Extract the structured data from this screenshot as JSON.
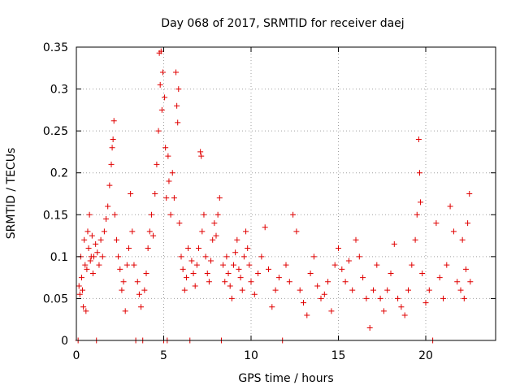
{
  "chart_data": {
    "type": "scatter",
    "title": "Day 068 of 2017, SRMTID for receiver daej",
    "xlabel": "GPS time / hours",
    "ylabel": "SRMTID / TECUs",
    "xlim": [
      0,
      24
    ],
    "ylim": [
      0,
      0.35
    ],
    "xticks": [
      0,
      5,
      10,
      15,
      20
    ],
    "xtick_labels": [
      "0",
      "5",
      "10",
      "15",
      "20"
    ],
    "yticks": [
      0,
      0.05,
      0.1,
      0.15,
      0.2,
      0.25,
      0.3,
      0.35
    ],
    "ytick_labels": [
      "0",
      "0.05",
      "0.1",
      "0.15",
      "0.2",
      "0.25",
      "0.3",
      "0.35"
    ],
    "grid": true,
    "marker": "plus",
    "color": "#e00000",
    "series": [
      {
        "name": "SRMTID",
        "points": [
          [
            0.1,
            0.0
          ],
          [
            0.15,
            0.065
          ],
          [
            0.2,
            0.055
          ],
          [
            0.25,
            0.1
          ],
          [
            0.3,
            0.075
          ],
          [
            0.35,
            0.06
          ],
          [
            0.4,
            0.04
          ],
          [
            0.45,
            0.12
          ],
          [
            0.5,
            0.09
          ],
          [
            0.55,
            0.035
          ],
          [
            0.6,
            0.085
          ],
          [
            0.65,
            0.13
          ],
          [
            0.7,
            0.11
          ],
          [
            0.75,
            0.15
          ],
          [
            0.8,
            0.095
          ],
          [
            0.85,
            0.1
          ],
          [
            0.9,
            0.125
          ],
          [
            0.95,
            0.08
          ],
          [
            1.0,
            0.1
          ],
          [
            1.1,
            0.115
          ],
          [
            1.15,
            0.0
          ],
          [
            1.2,
            0.105
          ],
          [
            1.3,
            0.09
          ],
          [
            1.4,
            0.12
          ],
          [
            1.5,
            0.1
          ],
          [
            1.6,
            0.13
          ],
          [
            1.7,
            0.145
          ],
          [
            1.8,
            0.16
          ],
          [
            1.9,
            0.185
          ],
          [
            2.0,
            0.21
          ],
          [
            2.05,
            0.23
          ],
          [
            2.1,
            0.24
          ],
          [
            2.15,
            0.262
          ],
          [
            2.2,
            0.15
          ],
          [
            2.3,
            0.12
          ],
          [
            2.4,
            0.1
          ],
          [
            2.5,
            0.085
          ],
          [
            2.6,
            0.06
          ],
          [
            2.7,
            0.07
          ],
          [
            2.8,
            0.035
          ],
          [
            2.9,
            0.09
          ],
          [
            3.0,
            0.11
          ],
          [
            3.1,
            0.175
          ],
          [
            3.2,
            0.13
          ],
          [
            3.3,
            0.09
          ],
          [
            3.4,
            0.0
          ],
          [
            3.5,
            0.07
          ],
          [
            3.6,
            0.055
          ],
          [
            3.7,
            0.04
          ],
          [
            3.8,
            0.0
          ],
          [
            3.9,
            0.06
          ],
          [
            4.0,
            0.08
          ],
          [
            4.1,
            0.11
          ],
          [
            4.2,
            0.13
          ],
          [
            4.3,
            0.15
          ],
          [
            4.4,
            0.125
          ],
          [
            4.5,
            0.175
          ],
          [
            4.6,
            0.21
          ],
          [
            4.7,
            0.25
          ],
          [
            4.75,
            0.343
          ],
          [
            4.8,
            0.305
          ],
          [
            4.85,
            0.345
          ],
          [
            4.9,
            0.275
          ],
          [
            4.95,
            0.32
          ],
          [
            5.0,
            0.0
          ],
          [
            5.05,
            0.29
          ],
          [
            5.1,
            0.23
          ],
          [
            5.15,
            0.17
          ],
          [
            5.2,
            0.0
          ],
          [
            5.25,
            0.22
          ],
          [
            5.3,
            0.19
          ],
          [
            5.4,
            0.15
          ],
          [
            5.5,
            0.2
          ],
          [
            5.6,
            0.17
          ],
          [
            5.7,
            0.32
          ],
          [
            5.75,
            0.28
          ],
          [
            5.8,
            0.26
          ],
          [
            5.85,
            0.3
          ],
          [
            5.9,
            0.14
          ],
          [
            6.0,
            0.1
          ],
          [
            6.1,
            0.085
          ],
          [
            6.2,
            0.06
          ],
          [
            6.3,
            0.075
          ],
          [
            6.4,
            0.11
          ],
          [
            6.5,
            0.0
          ],
          [
            6.6,
            0.095
          ],
          [
            6.7,
            0.08
          ],
          [
            6.8,
            0.065
          ],
          [
            6.9,
            0.09
          ],
          [
            7.0,
            0.11
          ],
          [
            7.1,
            0.225
          ],
          [
            7.15,
            0.22
          ],
          [
            7.2,
            0.13
          ],
          [
            7.3,
            0.15
          ],
          [
            7.4,
            0.1
          ],
          [
            7.5,
            0.08
          ],
          [
            7.6,
            0.07
          ],
          [
            7.7,
            0.095
          ],
          [
            7.8,
            0.12
          ],
          [
            7.9,
            0.14
          ],
          [
            8.0,
            0.125
          ],
          [
            8.1,
            0.15
          ],
          [
            8.2,
            0.17
          ],
          [
            8.3,
            0.0
          ],
          [
            8.4,
            0.09
          ],
          [
            8.5,
            0.07
          ],
          [
            8.6,
            0.1
          ],
          [
            8.7,
            0.08
          ],
          [
            8.8,
            0.065
          ],
          [
            8.9,
            0.05
          ],
          [
            9.0,
            0.09
          ],
          [
            9.1,
            0.105
          ],
          [
            9.2,
            0.12
          ],
          [
            9.3,
            0.085
          ],
          [
            9.4,
            0.075
          ],
          [
            9.5,
            0.06
          ],
          [
            9.6,
            0.1
          ],
          [
            9.7,
            0.13
          ],
          [
            9.8,
            0.11
          ],
          [
            9.9,
            0.09
          ],
          [
            10.0,
            0.07
          ],
          [
            10.2,
            0.055
          ],
          [
            10.4,
            0.08
          ],
          [
            10.6,
            0.1
          ],
          [
            10.8,
            0.135
          ],
          [
            11.0,
            0.085
          ],
          [
            11.2,
            0.04
          ],
          [
            11.4,
            0.06
          ],
          [
            11.6,
            0.075
          ],
          [
            11.8,
            0.0
          ],
          [
            12.0,
            0.09
          ],
          [
            12.2,
            0.07
          ],
          [
            12.4,
            0.15
          ],
          [
            12.6,
            0.13
          ],
          [
            12.8,
            0.06
          ],
          [
            13.0,
            0.045
          ],
          [
            13.2,
            0.03
          ],
          [
            13.4,
            0.08
          ],
          [
            13.6,
            0.1
          ],
          [
            13.8,
            0.065
          ],
          [
            14.0,
            0.05
          ],
          [
            14.2,
            0.055
          ],
          [
            14.4,
            0.07
          ],
          [
            14.6,
            0.035
          ],
          [
            14.8,
            0.09
          ],
          [
            15.0,
            0.11
          ],
          [
            15.2,
            0.085
          ],
          [
            15.4,
            0.07
          ],
          [
            15.6,
            0.095
          ],
          [
            15.8,
            0.06
          ],
          [
            16.0,
            0.12
          ],
          [
            16.2,
            0.1
          ],
          [
            16.4,
            0.075
          ],
          [
            16.6,
            0.05
          ],
          [
            16.8,
            0.015
          ],
          [
            17.0,
            0.06
          ],
          [
            17.2,
            0.09
          ],
          [
            17.4,
            0.05
          ],
          [
            17.6,
            0.035
          ],
          [
            17.8,
            0.06
          ],
          [
            18.0,
            0.08
          ],
          [
            18.2,
            0.115
          ],
          [
            18.4,
            0.05
          ],
          [
            18.6,
            0.04
          ],
          [
            18.8,
            0.03
          ],
          [
            19.0,
            0.06
          ],
          [
            19.2,
            0.09
          ],
          [
            19.4,
            0.12
          ],
          [
            19.5,
            0.15
          ],
          [
            19.6,
            0.24
          ],
          [
            19.65,
            0.2
          ],
          [
            19.7,
            0.165
          ],
          [
            19.8,
            0.08
          ],
          [
            20.0,
            0.045
          ],
          [
            20.2,
            0.06
          ],
          [
            20.4,
            0.0
          ],
          [
            20.6,
            0.14
          ],
          [
            20.8,
            0.075
          ],
          [
            21.0,
            0.05
          ],
          [
            21.2,
            0.09
          ],
          [
            21.4,
            0.16
          ],
          [
            21.6,
            0.13
          ],
          [
            21.8,
            0.07
          ],
          [
            22.0,
            0.06
          ],
          [
            22.1,
            0.12
          ],
          [
            22.2,
            0.05
          ],
          [
            22.3,
            0.085
          ],
          [
            22.4,
            0.14
          ],
          [
            22.5,
            0.175
          ],
          [
            22.55,
            0.07
          ]
        ]
      }
    ]
  }
}
